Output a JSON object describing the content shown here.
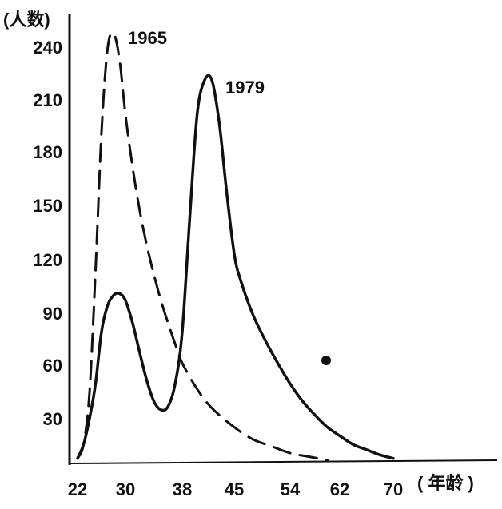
{
  "chart_data": {
    "type": "line",
    "ylabel": "(人数)",
    "xlabel": "( 年龄 )",
    "x_ticks": [
      "22",
      "30",
      "38",
      "45",
      "54",
      "62",
      "70"
    ],
    "y_ticks": [
      "30",
      "60",
      "90",
      "120",
      "150",
      "180",
      "210",
      "240"
    ],
    "ylim": [
      0,
      250
    ],
    "grid": false,
    "series": [
      {
        "name": "1965",
        "style": "dashed",
        "color": "#111111",
        "points": [
          [
            22,
            2
          ],
          [
            23,
            10
          ],
          [
            24,
            40
          ],
          [
            25,
            110
          ],
          [
            26,
            190
          ],
          [
            27,
            238
          ],
          [
            28,
            247
          ],
          [
            29,
            232
          ],
          [
            30,
            200
          ],
          [
            31,
            170
          ],
          [
            32,
            145
          ],
          [
            33,
            125
          ],
          [
            34,
            108
          ],
          [
            35,
            93
          ],
          [
            36,
            80
          ],
          [
            37,
            68
          ],
          [
            38,
            57
          ],
          [
            40,
            42
          ],
          [
            42,
            31
          ],
          [
            45,
            20
          ],
          [
            48,
            13
          ],
          [
            51,
            9
          ],
          [
            54,
            5
          ],
          [
            57,
            3
          ],
          [
            60,
            1
          ]
        ]
      },
      {
        "name": "1979",
        "style": "solid",
        "color": "#111111",
        "points": [
          [
            22,
            2
          ],
          [
            23,
            10
          ],
          [
            24,
            25
          ],
          [
            25,
            45
          ],
          [
            26,
            75
          ],
          [
            27,
            90
          ],
          [
            28,
            96
          ],
          [
            29,
            97
          ],
          [
            30,
            93
          ],
          [
            31,
            80
          ],
          [
            32,
            63
          ],
          [
            33,
            47
          ],
          [
            34,
            35
          ],
          [
            35,
            30
          ],
          [
            36,
            32
          ],
          [
            37,
            45
          ],
          [
            38,
            75
          ],
          [
            39,
            140
          ],
          [
            40,
            200
          ],
          [
            41,
            220
          ],
          [
            42,
            220
          ],
          [
            43,
            195
          ],
          [
            44,
            155
          ],
          [
            45,
            120
          ],
          [
            46,
            105
          ],
          [
            48,
            85
          ],
          [
            50,
            70
          ],
          [
            52,
            57
          ],
          [
            54,
            45
          ],
          [
            56,
            35
          ],
          [
            58,
            27
          ],
          [
            60,
            20
          ],
          [
            62,
            15
          ],
          [
            64,
            10
          ],
          [
            66,
            7
          ],
          [
            68,
            4
          ],
          [
            70,
            2
          ]
        ]
      }
    ]
  }
}
